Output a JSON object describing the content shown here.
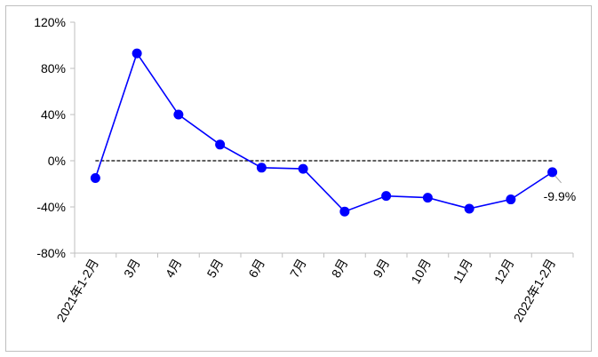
{
  "chart_data": {
    "type": "line",
    "title": "",
    "xlabel": "",
    "ylabel": "",
    "categories": [
      "2021年1-2月",
      "3月",
      "4月",
      "5月",
      "6月",
      "7月",
      "8月",
      "9月",
      "10月",
      "11月",
      "12月",
      "2022年1-2月"
    ],
    "series": [
      {
        "values": [
          -15,
          93,
          40,
          14,
          -6,
          -7,
          -44,
          -30.5,
          -32,
          -41.5,
          -33.5,
          -9.9
        ],
        "color": "#0000ff"
      }
    ],
    "ylim": [
      -80,
      120
    ],
    "yticks": [
      -80,
      -40,
      0,
      40,
      80,
      120
    ],
    "ytick_labels": [
      "-80%",
      "-40%",
      "0%",
      "40%",
      "80%",
      "120%"
    ],
    "reference_line": {
      "y": 0,
      "style": "dashed",
      "color": "#000000"
    },
    "annotations": [
      {
        "category": "2022年1-2月",
        "text": "-9.9%"
      }
    ],
    "grid": false,
    "legend": "none"
  }
}
